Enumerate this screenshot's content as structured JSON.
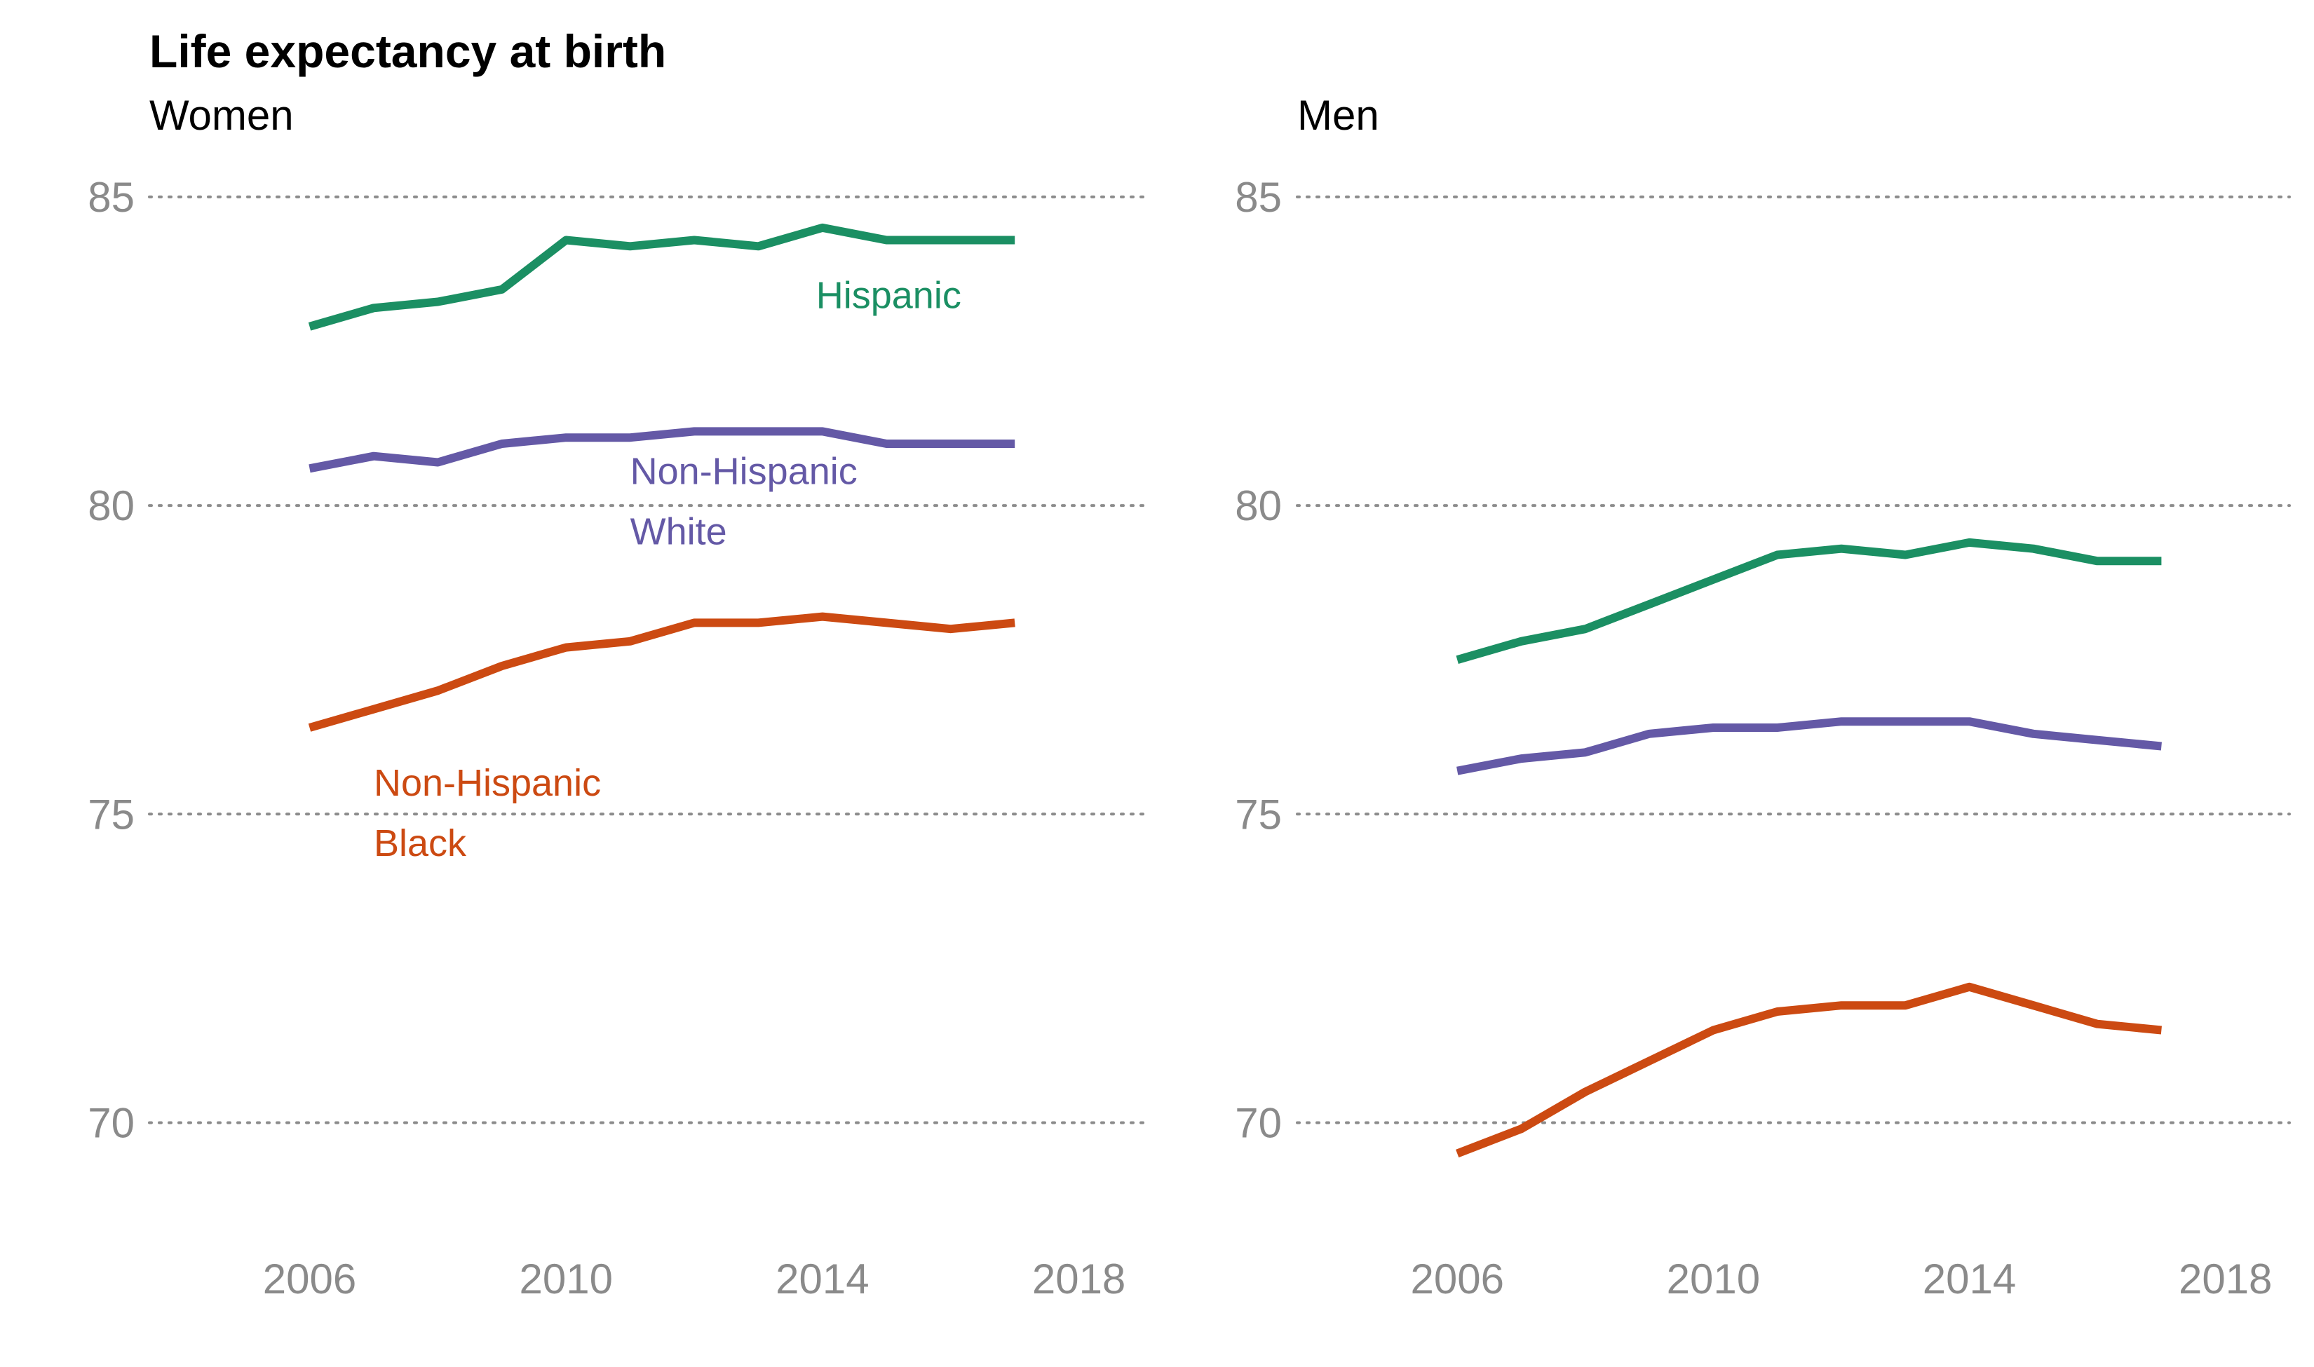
{
  "title": "Life expectancy at birth",
  "colors": {
    "hispanic": "#1b8f63",
    "nh_white": "#6459a6",
    "nh_black": "#cc4a12",
    "grid": "#8c8c8c",
    "tick_text": "#8a8a8a"
  },
  "chart_data": [
    {
      "type": "line",
      "subtitle": "Women",
      "xlim": [
        2003.5,
        2019.0
      ],
      "ylim": [
        68.2,
        86.6
      ],
      "xticks": [
        2006,
        2010,
        2014,
        2018
      ],
      "yticks": [
        70,
        75,
        80,
        85
      ],
      "grid": "horizontal dotted",
      "x": [
        2006,
        2007,
        2008,
        2009,
        2010,
        2011,
        2012,
        2013,
        2014,
        2015,
        2016,
        2017
      ],
      "series": [
        {
          "key": "hispanic",
          "values": [
            82.9,
            83.2,
            83.3,
            83.5,
            84.3,
            84.2,
            84.3,
            84.2,
            84.5,
            84.3,
            84.3,
            84.3
          ]
        },
        {
          "key": "nh_white",
          "values": [
            80.6,
            80.8,
            80.7,
            81.0,
            81.1,
            81.1,
            81.2,
            81.2,
            81.2,
            81.0,
            81.0,
            81.0
          ]
        },
        {
          "key": "nh_black",
          "values": [
            76.4,
            76.7,
            77.0,
            77.4,
            77.7,
            77.8,
            78.1,
            78.1,
            78.2,
            78.1,
            78.0,
            78.1
          ]
        }
      ],
      "annotations": [
        {
          "key": "hispanic",
          "lines": [
            "Hispanic"
          ],
          "x": 2013.9,
          "y": 83.2
        },
        {
          "key": "nh_white",
          "lines": [
            "Non-Hispanic",
            "White"
          ],
          "x": 2011.0,
          "y": 80.35
        },
        {
          "key": "nh_black",
          "lines": [
            "Non-Hispanic",
            "Black"
          ],
          "x": 2007.0,
          "y": 75.3
        }
      ]
    },
    {
      "type": "line",
      "subtitle": "Men",
      "xlim": [
        2003.5,
        2019.0
      ],
      "ylim": [
        68.2,
        86.6
      ],
      "xticks": [
        2006,
        2010,
        2014,
        2018
      ],
      "yticks": [
        70,
        75,
        80,
        85
      ],
      "grid": "horizontal dotted",
      "x": [
        2006,
        2007,
        2008,
        2009,
        2010,
        2011,
        2012,
        2013,
        2014,
        2015,
        2016,
        2017
      ],
      "series": [
        {
          "key": "hispanic",
          "values": [
            77.5,
            77.8,
            78.0,
            78.4,
            78.8,
            79.2,
            79.3,
            79.2,
            79.4,
            79.3,
            79.1,
            79.1
          ]
        },
        {
          "key": "nh_white",
          "values": [
            75.7,
            75.9,
            76.0,
            76.3,
            76.4,
            76.4,
            76.5,
            76.5,
            76.5,
            76.3,
            76.2,
            76.1
          ]
        },
        {
          "key": "nh_black",
          "values": [
            69.5,
            69.9,
            70.5,
            71.0,
            71.5,
            71.8,
            71.9,
            71.9,
            72.2,
            71.9,
            71.6,
            71.5
          ]
        }
      ],
      "annotations": []
    }
  ]
}
